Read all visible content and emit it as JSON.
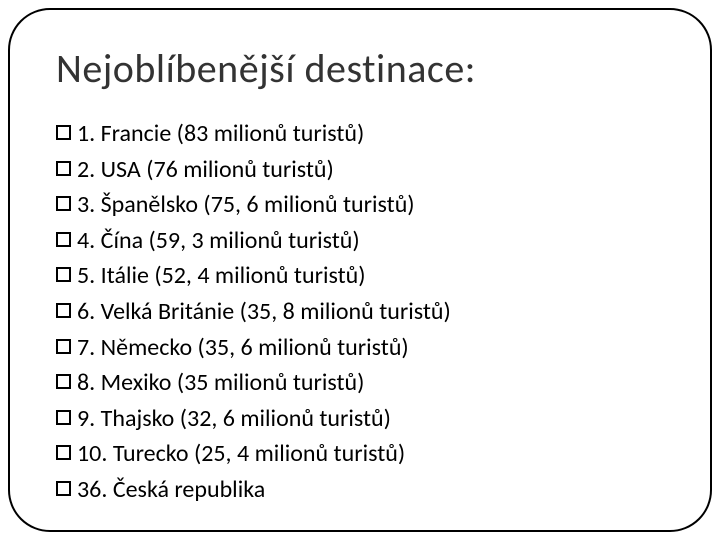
{
  "title": "Nejoblíbenější destinace:",
  "title_fontsize": 40,
  "title_color": "#333333",
  "item_fontsize": 24,
  "item_color": "#000000",
  "bullet_border_color": "#000000",
  "frame_border_color": "#000000",
  "frame_border_radius": 42,
  "background_color": "#ffffff",
  "items": [
    {
      "text": "1. Francie (83 milionů turistů)"
    },
    {
      "text": "2. USA (76 milionů turistů)"
    },
    {
      "text": "3. Španělsko (75, 6 milionů turistů)"
    },
    {
      "text": "4. Čína (59, 3 milionů turistů)"
    },
    {
      "text": "5. Itálie (52, 4 milionů turistů)"
    },
    {
      "text": "6. Velká Británie (35, 8 milionů turistů)"
    },
    {
      "text": "7. Německo (35, 6 milionů turistů)"
    },
    {
      "text": "8. Mexiko (35 milionů turistů)"
    },
    {
      "text": "9. Thajsko (32, 6 milionů turistů)"
    },
    {
      "text": "10. Turecko (25, 4 milionů turistů)"
    },
    {
      "text": "36. Česká republika"
    }
  ]
}
